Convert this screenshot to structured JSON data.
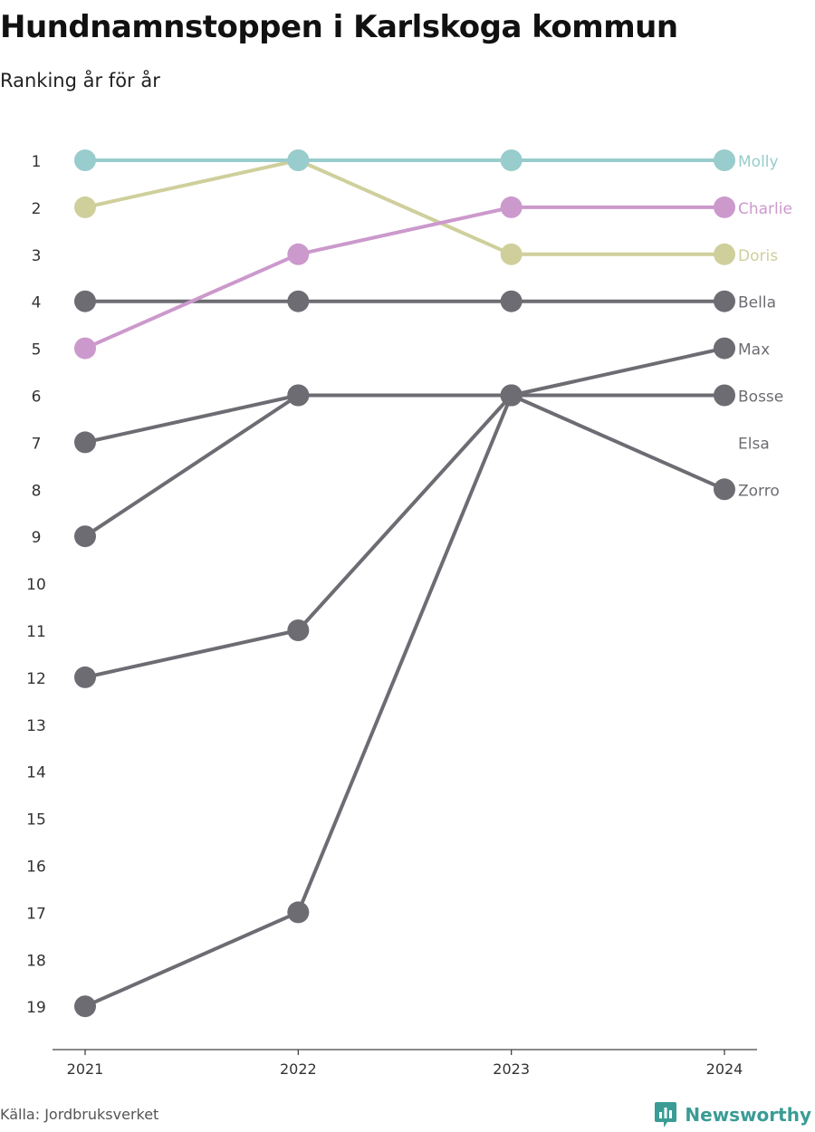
{
  "title": "Hundnamnstoppen i Karlskoga kommun",
  "subtitle": "Ranking år för år",
  "source": "Källa: Jordbruksverket",
  "brand": {
    "name": "Newsworthy",
    "icon": "newsworthy-logo-icon",
    "color": "#3a9c95"
  },
  "chart_data": {
    "type": "line",
    "x": [
      "2021",
      "2022",
      "2023",
      "2024"
    ],
    "y_ticks": [
      1,
      2,
      3,
      4,
      5,
      6,
      7,
      8,
      9,
      10,
      11,
      12,
      13,
      14,
      15,
      16,
      17,
      18,
      19
    ],
    "ylim": [
      1,
      19
    ],
    "y_inverted": true,
    "grid": false,
    "series": [
      {
        "name": "Bosse",
        "values": [
          9,
          6,
          6,
          6
        ],
        "color": "#6d6c73"
      },
      {
        "name": "Elsa",
        "values": [
          7,
          6,
          6,
          null
        ],
        "color": "#6d6c73"
      },
      {
        "name": "Zorro",
        "values": [
          12,
          11,
          6,
          8
        ],
        "color": "#6d6c73"
      },
      {
        "name": "Max",
        "values": [
          19,
          17,
          6,
          5
        ],
        "color": "#6d6c73"
      },
      {
        "name": "Bella",
        "values": [
          4,
          4,
          4,
          4
        ],
        "color": "#6d6c73"
      },
      {
        "name": "Doris",
        "values": [
          2,
          1,
          3,
          3
        ],
        "color": "#cfcf9c"
      },
      {
        "name": "Charlie",
        "values": [
          5,
          3,
          2,
          2
        ],
        "color": "#cc99cc"
      },
      {
        "name": "Molly",
        "values": [
          1,
          1,
          1,
          1
        ],
        "color": "#99cccc"
      }
    ],
    "end_labels": [
      {
        "name": "Molly",
        "rank": 1,
        "color": "#99cccc"
      },
      {
        "name": "Charlie",
        "rank": 2,
        "color": "#cc99cc"
      },
      {
        "name": "Doris",
        "rank": 3,
        "color": "#cfcf9c"
      },
      {
        "name": "Bella",
        "rank": 4,
        "color": "#6d6c73"
      },
      {
        "name": "Max",
        "rank": 5,
        "color": "#6d6c73"
      },
      {
        "name": "Bosse",
        "rank": 6,
        "color": "#6d6c73"
      },
      {
        "name": "Elsa",
        "rank": 7,
        "color": "#6d6c73"
      },
      {
        "name": "Zorro",
        "rank": 8,
        "color": "#6d6c73"
      }
    ]
  }
}
